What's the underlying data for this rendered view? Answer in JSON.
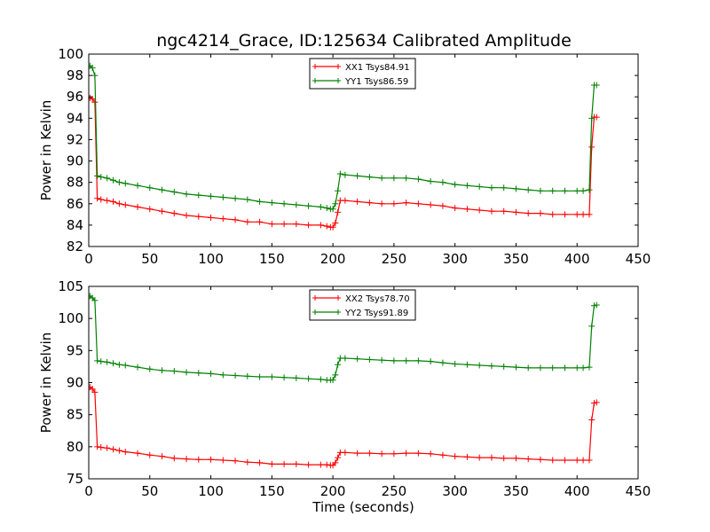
{
  "title": "ngc4214_Grace, ID:125634 Calibrated Amplitude",
  "chart_data": [
    {
      "type": "line",
      "ylabel": "Power in Kelvin",
      "xlabel": "",
      "xlim": [
        0,
        450
      ],
      "ylim": [
        82,
        100
      ],
      "xticks": [
        0,
        50,
        100,
        150,
        200,
        250,
        300,
        350,
        400,
        450
      ],
      "yticks": [
        82,
        84,
        86,
        88,
        90,
        92,
        94,
        96,
        98,
        100
      ],
      "legend_position": "top-center",
      "series": [
        {
          "name": "XX1 Tsys84.91",
          "color": "#ff0000",
          "x": [
            1,
            3,
            5,
            7,
            10,
            15,
            20,
            25,
            30,
            40,
            50,
            60,
            70,
            80,
            90,
            100,
            110,
            120,
            130,
            140,
            150,
            160,
            170,
            180,
            190,
            195,
            198,
            200,
            202,
            204,
            206,
            210,
            220,
            230,
            240,
            250,
            260,
            270,
            280,
            290,
            300,
            310,
            320,
            330,
            340,
            350,
            360,
            370,
            380,
            390,
            400,
            405,
            410,
            412,
            414,
            416
          ],
          "values": [
            95.9,
            95.8,
            95.5,
            86.5,
            86.4,
            86.3,
            86.2,
            86.0,
            85.9,
            85.7,
            85.5,
            85.3,
            85.1,
            84.9,
            84.8,
            84.7,
            84.6,
            84.5,
            84.3,
            84.3,
            84.1,
            84.1,
            84.1,
            84.0,
            84.0,
            83.9,
            83.8,
            83.8,
            84.2,
            85.2,
            86.3,
            86.3,
            86.2,
            86.1,
            86.0,
            86.0,
            86.1,
            86.0,
            85.9,
            85.8,
            85.6,
            85.5,
            85.4,
            85.3,
            85.3,
            85.2,
            85.1,
            85.1,
            85.0,
            85.0,
            85.0,
            85.0,
            85.0,
            91.3,
            94.1,
            94.1
          ]
        },
        {
          "name": "YY1 Tsys86.59",
          "color": "#008000",
          "x": [
            1,
            3,
            5,
            7,
            10,
            15,
            20,
            25,
            30,
            40,
            50,
            60,
            70,
            80,
            90,
            100,
            110,
            120,
            130,
            140,
            150,
            160,
            170,
            180,
            190,
            195,
            198,
            200,
            202,
            204,
            206,
            210,
            220,
            230,
            240,
            250,
            260,
            270,
            280,
            290,
            300,
            310,
            320,
            330,
            340,
            350,
            360,
            370,
            380,
            390,
            400,
            405,
            410,
            412,
            414,
            416
          ],
          "values": [
            98.9,
            98.7,
            98.0,
            88.6,
            88.5,
            88.4,
            88.2,
            88.0,
            87.9,
            87.7,
            87.5,
            87.3,
            87.1,
            86.9,
            86.8,
            86.7,
            86.6,
            86.5,
            86.4,
            86.2,
            86.1,
            86.0,
            85.9,
            85.8,
            85.7,
            85.6,
            85.5,
            85.5,
            86.0,
            87.2,
            88.8,
            88.7,
            88.6,
            88.5,
            88.4,
            88.4,
            88.4,
            88.3,
            88.1,
            88.0,
            87.8,
            87.7,
            87.6,
            87.5,
            87.5,
            87.4,
            87.3,
            87.2,
            87.2,
            87.2,
            87.2,
            87.2,
            87.3,
            94.0,
            97.1,
            97.1
          ]
        }
      ]
    },
    {
      "type": "line",
      "ylabel": "Power in Kelvin",
      "xlabel": "Time (seconds)",
      "xlim": [
        0,
        450
      ],
      "ylim": [
        75,
        105
      ],
      "xticks": [
        0,
        50,
        100,
        150,
        200,
        250,
        300,
        350,
        400,
        450
      ],
      "yticks": [
        75,
        80,
        85,
        90,
        95,
        100,
        105
      ],
      "legend_position": "top-center",
      "series": [
        {
          "name": "XX2 Tsys78.70",
          "color": "#ff0000",
          "x": [
            1,
            3,
            5,
            7,
            10,
            15,
            20,
            25,
            30,
            40,
            50,
            60,
            70,
            80,
            90,
            100,
            110,
            120,
            130,
            140,
            150,
            160,
            170,
            180,
            190,
            195,
            198,
            200,
            202,
            204,
            206,
            210,
            220,
            230,
            240,
            250,
            260,
            270,
            280,
            290,
            300,
            310,
            320,
            330,
            340,
            350,
            360,
            370,
            380,
            390,
            400,
            405,
            410,
            412,
            414,
            416
          ],
          "values": [
            89.3,
            89.0,
            88.5,
            80.0,
            79.9,
            79.8,
            79.6,
            79.4,
            79.2,
            79.0,
            78.7,
            78.5,
            78.2,
            78.1,
            78.0,
            78.0,
            77.9,
            77.8,
            77.6,
            77.5,
            77.3,
            77.3,
            77.3,
            77.2,
            77.2,
            77.2,
            77.1,
            77.1,
            77.5,
            78.3,
            79.1,
            79.1,
            79.0,
            79.0,
            78.9,
            78.9,
            79.0,
            79.0,
            78.9,
            78.7,
            78.5,
            78.4,
            78.3,
            78.3,
            78.2,
            78.2,
            78.1,
            78.0,
            77.9,
            77.9,
            77.9,
            77.9,
            77.9,
            84.2,
            86.8,
            86.9
          ]
        },
        {
          "name": "YY2 Tsys91.89",
          "color": "#008000",
          "x": [
            1,
            3,
            5,
            7,
            10,
            15,
            20,
            25,
            30,
            40,
            50,
            60,
            70,
            80,
            90,
            100,
            110,
            120,
            130,
            140,
            150,
            160,
            170,
            180,
            190,
            195,
            198,
            200,
            202,
            204,
            206,
            210,
            220,
            230,
            240,
            250,
            260,
            270,
            280,
            290,
            300,
            310,
            320,
            330,
            340,
            350,
            360,
            370,
            380,
            390,
            400,
            405,
            410,
            412,
            414,
            416
          ],
          "values": [
            103.5,
            103.2,
            102.8,
            93.4,
            93.3,
            93.2,
            93.0,
            92.8,
            92.7,
            92.4,
            92.1,
            91.9,
            91.8,
            91.6,
            91.5,
            91.4,
            91.2,
            91.1,
            91.0,
            90.9,
            90.9,
            90.8,
            90.7,
            90.6,
            90.5,
            90.4,
            90.4,
            90.4,
            91.2,
            92.8,
            93.8,
            93.8,
            93.7,
            93.6,
            93.5,
            93.4,
            93.4,
            93.4,
            93.3,
            93.1,
            92.9,
            92.8,
            92.7,
            92.6,
            92.5,
            92.4,
            92.3,
            92.3,
            92.3,
            92.3,
            92.3,
            92.3,
            92.4,
            98.8,
            102.0,
            102.1
          ]
        }
      ]
    }
  ]
}
